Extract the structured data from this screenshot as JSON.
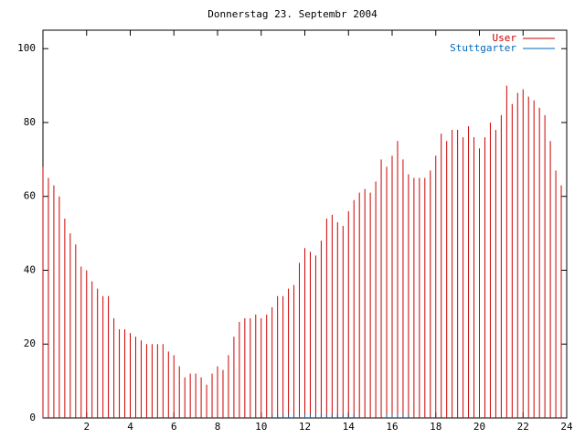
{
  "chart_data": {
    "type": "impulse",
    "title": "Donnerstag 23. Septembr 2004",
    "x": [
      0,
      0.25,
      0.5,
      0.75,
      1,
      1.25,
      1.5,
      1.75,
      2,
      2.25,
      2.5,
      2.75,
      3,
      3.25,
      3.5,
      3.75,
      4,
      4.25,
      4.5,
      4.75,
      5,
      5.25,
      5.5,
      5.75,
      6,
      6.25,
      6.5,
      6.75,
      7,
      7.25,
      7.5,
      7.75,
      8,
      8.25,
      8.5,
      8.75,
      9,
      9.25,
      9.5,
      9.75,
      10,
      10.25,
      10.5,
      10.75,
      11,
      11.25,
      11.5,
      11.75,
      12,
      12.25,
      12.5,
      12.75,
      13,
      13.25,
      13.5,
      13.75,
      14,
      14.25,
      14.5,
      14.75,
      15,
      15.25,
      15.5,
      15.75,
      16,
      16.25,
      16.5,
      16.75,
      17,
      17.25,
      17.5,
      17.75,
      18,
      18.25,
      18.5,
      18.75,
      19,
      19.25,
      19.5,
      19.75,
      20,
      20.25,
      20.5,
      20.75,
      21,
      21.25,
      21.5,
      21.75,
      22,
      22.25,
      22.5,
      22.75,
      23,
      23.25,
      23.5,
      23.75
    ],
    "series": [
      {
        "name": "User",
        "color": "#cc0000",
        "values": [
          68,
          65,
          63,
          60,
          54,
          50,
          47,
          41,
          40,
          37,
          35,
          33,
          33,
          27,
          24,
          24,
          23,
          22,
          21,
          20,
          20,
          20,
          20,
          18,
          17,
          14,
          11,
          12,
          12,
          11,
          9,
          12,
          14,
          13,
          17,
          22,
          26,
          27,
          27,
          28,
          27,
          28,
          30,
          33,
          33,
          35,
          36,
          42,
          46,
          45,
          44,
          48,
          54,
          55,
          53,
          52,
          56,
          59,
          61,
          62,
          61,
          64,
          70,
          68,
          71,
          75,
          70,
          66,
          65,
          65,
          65,
          67,
          71,
          77,
          75,
          78,
          78,
          76,
          79,
          76,
          73,
          76,
          80,
          78,
          82,
          90,
          85,
          88,
          89,
          87,
          86,
          84,
          82,
          75,
          67,
          63
        ]
      },
      {
        "name": "Stuttgarter",
        "color": "#0066bb",
        "values": [
          0,
          0,
          0,
          0,
          0,
          0,
          0,
          0,
          0,
          0,
          0,
          0,
          0,
          0,
          0,
          0,
          0,
          0,
          0,
          0,
          0,
          0,
          0,
          0,
          0,
          0,
          0,
          0,
          0,
          0,
          0,
          0,
          0,
          0,
          0,
          0,
          0,
          0,
          0,
          0,
          0,
          0,
          1,
          1,
          1,
          1,
          1,
          1,
          1,
          1,
          1,
          1,
          1,
          1,
          1,
          1,
          1,
          1,
          0,
          0,
          0,
          0,
          0,
          1,
          1,
          1,
          1,
          1,
          0,
          0,
          0,
          0,
          0,
          0,
          0,
          0,
          0,
          0,
          0,
          0,
          0,
          0,
          0,
          0,
          0,
          0,
          0,
          0,
          0,
          0,
          0,
          0,
          0,
          0,
          0,
          0
        ]
      }
    ],
    "xlim": [
      0,
      24
    ],
    "xticks": [
      2,
      4,
      6,
      8,
      10,
      12,
      14,
      16,
      18,
      20,
      22,
      24
    ],
    "ylim": [
      0,
      105
    ],
    "yticks": [
      0,
      20,
      40,
      60,
      80,
      100
    ],
    "legend": "top-right"
  }
}
